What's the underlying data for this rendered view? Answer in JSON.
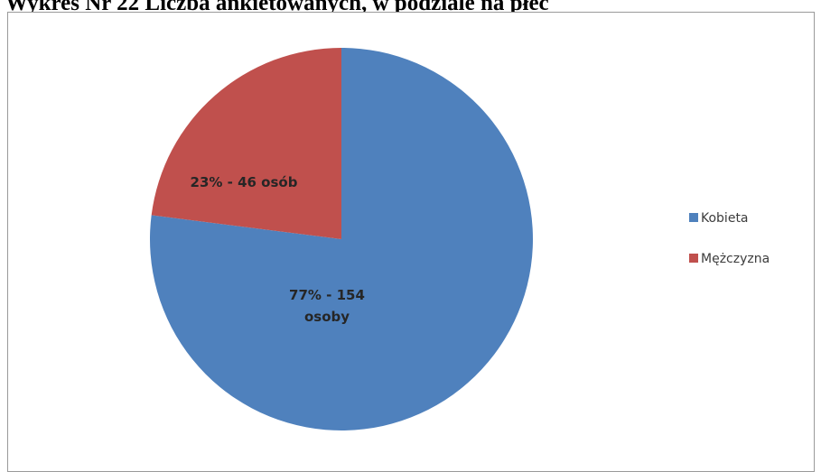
{
  "page": {
    "title": "Wykres Nr 22 Liczba ankietowanych, w podziale na płeć"
  },
  "chart_data": {
    "type": "pie",
    "title": "",
    "legend_position": "right",
    "slices": [
      {
        "name": "Kobieta",
        "value": 154,
        "percent": 77,
        "label_lines": [
          "77% - 154",
          "osoby"
        ],
        "color": "#4f81bd"
      },
      {
        "name": "Mężczyzna",
        "value": 46,
        "percent": 23,
        "label_lines": [
          "23% - 46 osób"
        ],
        "color": "#c0504d"
      }
    ]
  }
}
